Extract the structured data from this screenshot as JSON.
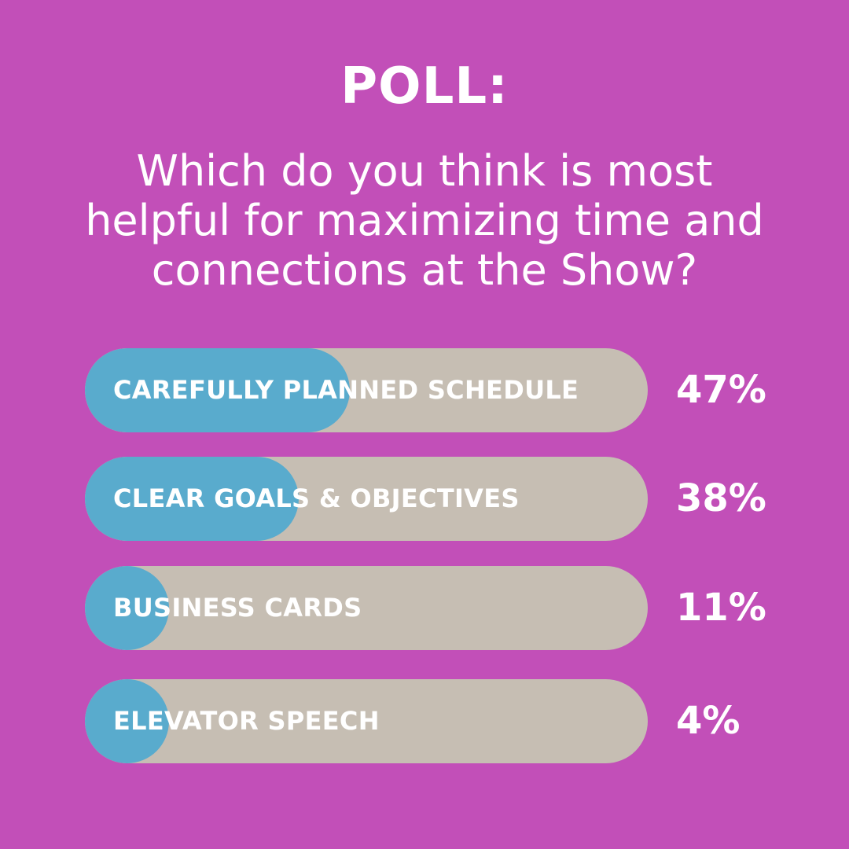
{
  "poll": {
    "title": "POLL:",
    "question_lines": [
      "Which do you think is most",
      "helpful for maximizing time and",
      "connections at the Show?"
    ]
  },
  "colors": {
    "background": "#c24fb8",
    "track": "#c6beb3",
    "fill": "#59abcd",
    "text": "#ffffff"
  },
  "chart_data": {
    "type": "bar",
    "title": "POLL:",
    "categories": [
      "CAREFULLY PLANNED SCHEDULE",
      "CLEAR GOALS & OBJECTIVES",
      "BUSINESS CARDS",
      "ELEVATOR SPEECH"
    ],
    "values": [
      47,
      38,
      11,
      4
    ],
    "value_labels": [
      "47%",
      "38%",
      "11%",
      "4%"
    ],
    "ylim": [
      0,
      100
    ]
  }
}
